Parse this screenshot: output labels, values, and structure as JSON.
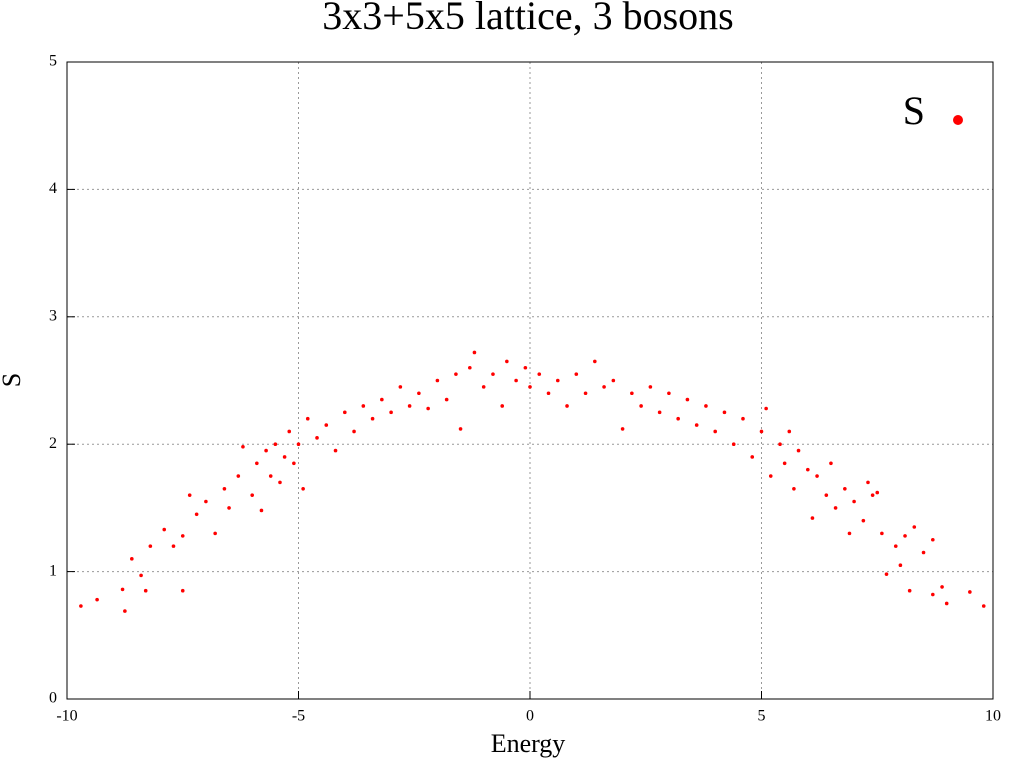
{
  "chart_data": {
    "type": "scatter",
    "title": "3x3+5x5 lattice, 3 bosons",
    "x_label": "Energy",
    "y_label": "S",
    "xlim": [
      -10,
      10
    ],
    "ylim": [
      0,
      5
    ],
    "xticks": [
      -10,
      -5,
      0,
      5,
      10
    ],
    "yticks": [
      0,
      1,
      2,
      3,
      4,
      5
    ],
    "grid": true,
    "legend": "top-right",
    "series": [
      {
        "name": "S",
        "color": "#ff0000",
        "x": [
          -9.7,
          -9.35,
          -8.8,
          -8.75,
          -8.6,
          -8.4,
          -8.3,
          -8.2,
          -7.9,
          -7.7,
          -7.5,
          -7.5,
          -7.35,
          -7.2,
          -7.0,
          -6.8,
          -6.6,
          -6.5,
          -6.3,
          -6.2,
          -6.0,
          -5.9,
          -5.8,
          -5.7,
          -5.6,
          -5.5,
          -5.4,
          -5.3,
          -5.2,
          -5.1,
          -5.0,
          -4.9,
          -4.8,
          -4.6,
          -4.4,
          -4.2,
          -4.0,
          -3.8,
          -3.6,
          -3.4,
          -3.2,
          -3.0,
          -2.8,
          -2.6,
          -2.4,
          -2.2,
          -2.0,
          -1.8,
          -1.6,
          -1.5,
          -1.3,
          -1.2,
          -1.0,
          -0.8,
          -0.6,
          -0.5,
          -0.3,
          -0.1,
          0.0,
          0.2,
          0.4,
          0.6,
          0.8,
          1.0,
          1.2,
          1.4,
          1.6,
          1.8,
          2.0,
          2.2,
          2.4,
          2.6,
          2.8,
          3.0,
          3.2,
          3.4,
          3.6,
          3.8,
          4.0,
          4.2,
          4.4,
          4.6,
          4.8,
          5.0,
          5.1,
          5.2,
          5.4,
          5.5,
          5.6,
          5.7,
          5.8,
          6.0,
          6.1,
          6.2,
          6.4,
          6.5,
          6.6,
          6.8,
          6.9,
          7.0,
          7.2,
          7.3,
          7.4,
          7.5,
          7.6,
          7.7,
          7.9,
          8.0,
          8.1,
          8.2,
          8.3,
          8.5,
          8.7,
          8.7,
          8.9,
          9.0,
          9.5,
          9.8
        ],
        "values": [
          0.73,
          0.78,
          0.86,
          0.69,
          1.1,
          0.97,
          0.85,
          1.2,
          1.33,
          1.2,
          1.28,
          0.85,
          1.6,
          1.45,
          1.55,
          1.3,
          1.65,
          1.5,
          1.75,
          1.98,
          1.6,
          1.85,
          1.48,
          1.95,
          1.75,
          2.0,
          1.7,
          1.9,
          2.1,
          1.85,
          2.0,
          1.65,
          2.2,
          2.05,
          2.15,
          1.95,
          2.25,
          2.1,
          2.3,
          2.2,
          2.35,
          2.25,
          2.45,
          2.3,
          2.4,
          2.28,
          2.5,
          2.35,
          2.55,
          2.12,
          2.6,
          2.72,
          2.45,
          2.55,
          2.3,
          2.65,
          2.5,
          2.6,
          2.45,
          2.55,
          2.4,
          2.5,
          2.3,
          2.55,
          2.4,
          2.65,
          2.45,
          2.5,
          2.12,
          2.4,
          2.3,
          2.45,
          2.25,
          2.4,
          2.2,
          2.35,
          2.15,
          2.3,
          2.1,
          2.25,
          2.0,
          2.2,
          1.9,
          2.1,
          2.28,
          1.75,
          2.0,
          1.85,
          2.1,
          1.65,
          1.95,
          1.8,
          1.42,
          1.75,
          1.6,
          1.85,
          1.5,
          1.65,
          1.3,
          1.55,
          1.4,
          1.7,
          1.6,
          1.62,
          1.3,
          0.98,
          1.2,
          1.05,
          1.28,
          0.85,
          1.35,
          1.15,
          1.25,
          0.82,
          0.88,
          0.75,
          0.84,
          0.73
        ]
      }
    ]
  }
}
